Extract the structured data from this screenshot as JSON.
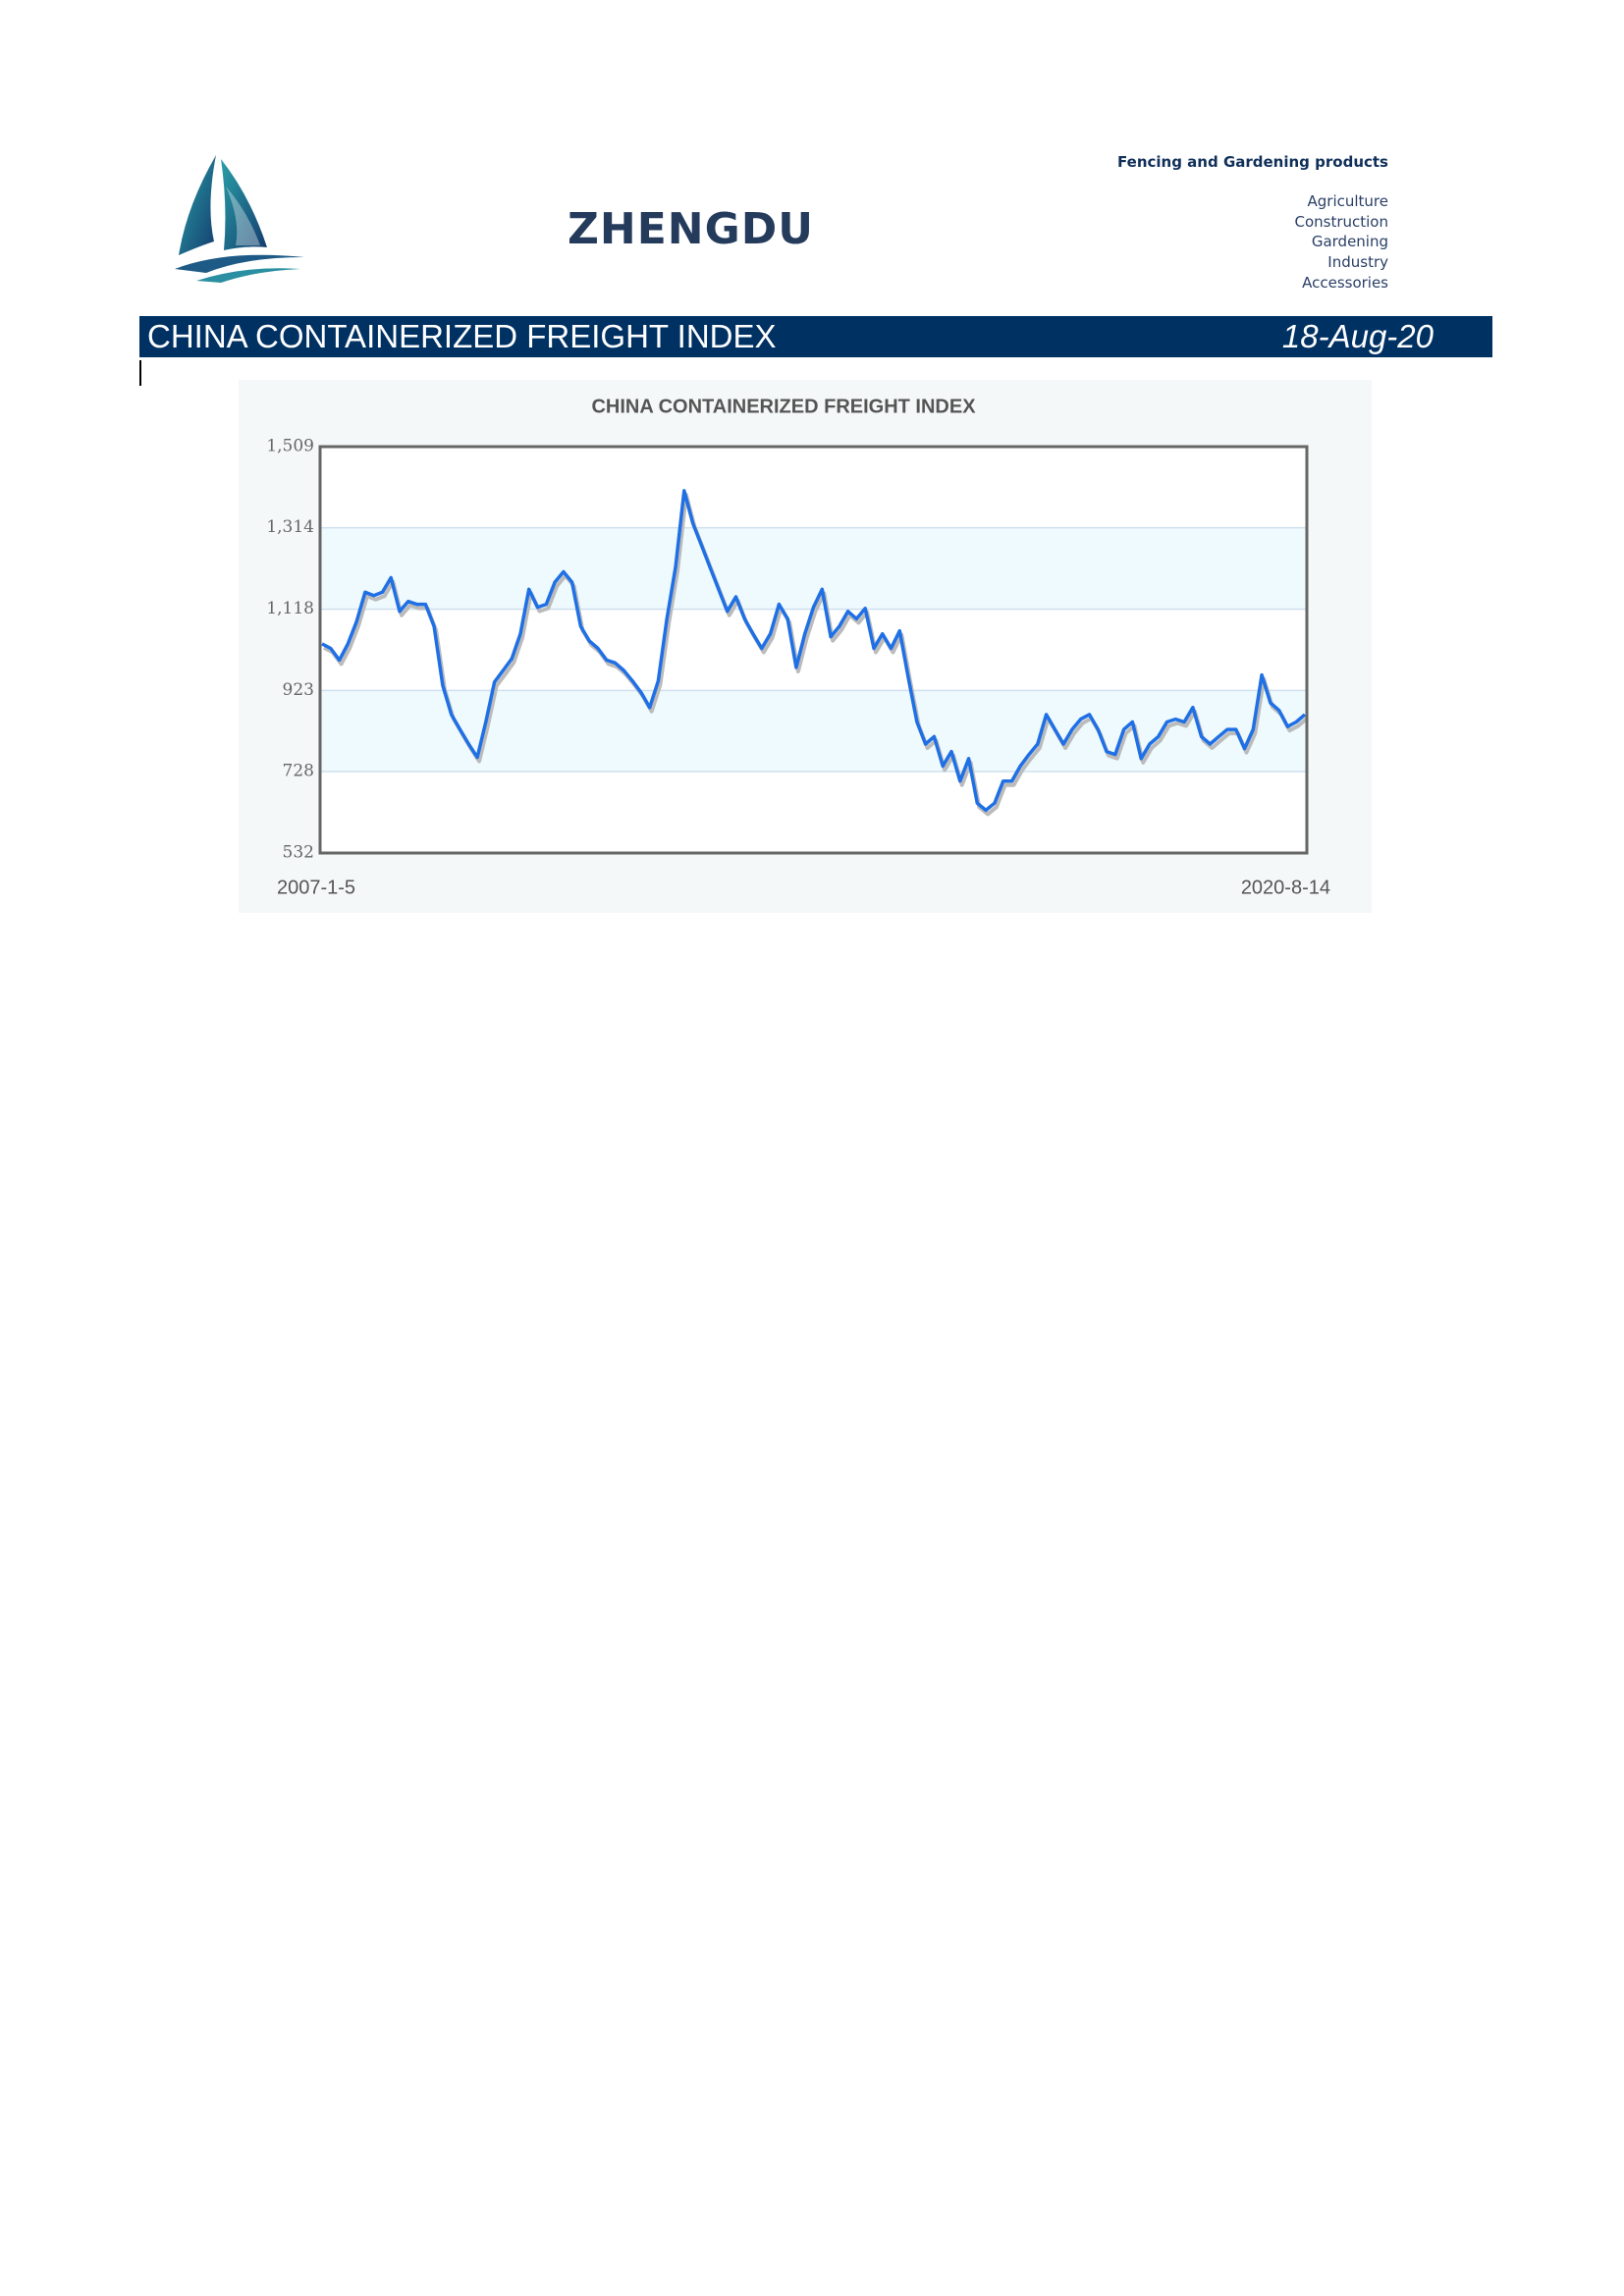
{
  "header": {
    "brand": "ZHENGDU",
    "tagline": "Fencing and Gardening products",
    "categories": [
      "Agriculture",
      "Construction",
      "Gardening",
      "Industry",
      "Accessories"
    ]
  },
  "banner": {
    "title": "CHINA CONTAINERIZED FREIGHT INDEX",
    "date": "18-Aug-20"
  },
  "chart_data": {
    "type": "line",
    "title": "CHINA CONTAINERIZED FREIGHT INDEX",
    "x_labels": [
      "2007-1-5",
      "2020-8-14"
    ],
    "values": [
      1035,
      1024,
      996,
      1035,
      1088,
      1159,
      1151,
      1159,
      1194,
      1113,
      1137,
      1130,
      1130,
      1077,
      935,
      865,
      829,
      794,
      762,
      847,
      943,
      971,
      999,
      1059,
      1166,
      1123,
      1130,
      1183,
      1208,
      1183,
      1077,
      1042,
      1024,
      996,
      989,
      971,
      946,
      918,
      882,
      946,
      1095,
      1219,
      1403,
      1325,
      1272,
      1219,
      1166,
      1113,
      1148,
      1095,
      1059,
      1024,
      1059,
      1130,
      1095,
      978,
      1059,
      1123,
      1166,
      1052,
      1077,
      1113,
      1095,
      1120,
      1024,
      1059,
      1024,
      1066,
      953,
      847,
      794,
      812,
      741,
      776,
      705,
      759,
      652,
      635,
      652,
      705,
      705,
      741,
      769,
      794,
      865,
      829,
      794,
      829,
      854,
      865,
      829,
      776,
      769,
      829,
      847,
      759,
      794,
      812,
      847,
      854,
      847,
      882,
      812,
      794,
      812,
      829,
      829,
      783,
      829,
      960,
      893,
      875,
      836,
      847,
      865
    ],
    "color": "#1f6fe5",
    "ylim": [
      532,
      1509
    ],
    "yticks": [
      532,
      728,
      923,
      {
        "value": 1118,
        "label": "1,118"
      },
      {
        "value": 1314,
        "label": "1,314"
      },
      {
        "value": 1509,
        "label": "1,509"
      }
    ],
    "grid": true
  }
}
